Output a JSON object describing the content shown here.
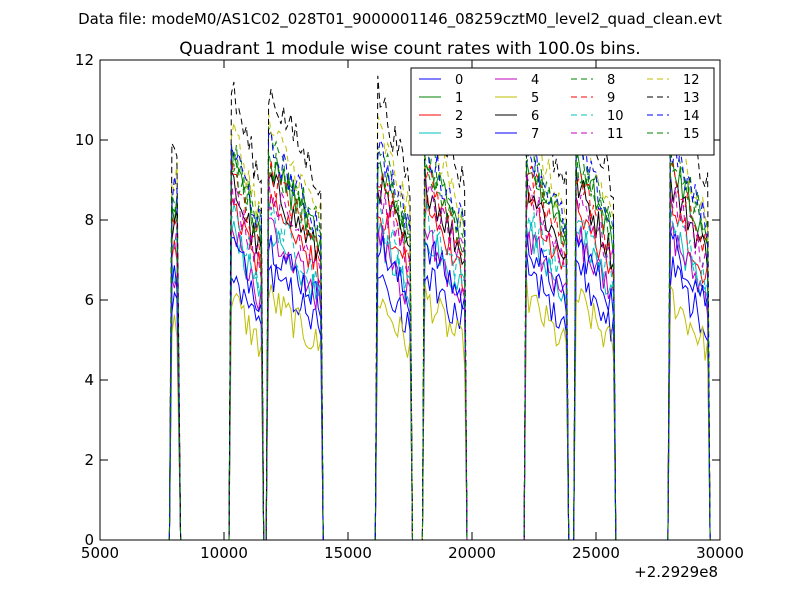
{
  "figure": {
    "suptitle": "Data file: modeM0/AS1C02_028T01_9000001146_08259cztM0_level2_quad_clean.evt"
  },
  "chart_data": {
    "type": "line",
    "title": "Quadrant 1 module wise count rates with 100.0s bins.",
    "xlabel": "",
    "ylabel": "",
    "xlim": [
      5000,
      30000
    ],
    "ylim": [
      0,
      12
    ],
    "x_offset_label": "+2.2929e8",
    "xticks": [
      5000,
      10000,
      15000,
      20000,
      25000,
      30000
    ],
    "yticks": [
      0,
      2,
      4,
      6,
      8,
      10,
      12
    ],
    "grid": false,
    "legend_placement": "top-right",
    "legend_columns": 4,
    "segments": [
      {
        "start": 7900,
        "end": 8150
      },
      {
        "start": 10300,
        "end": 11500
      },
      {
        "start": 11800,
        "end": 13900
      },
      {
        "start": 16200,
        "end": 17500
      },
      {
        "start": 18100,
        "end": 19700
      },
      {
        "start": 22200,
        "end": 23800
      },
      {
        "start": 24200,
        "end": 25700
      },
      {
        "start": 28000,
        "end": 29500
      }
    ],
    "series": [
      {
        "name": "0",
        "color": "#0000ff",
        "dash": "solid",
        "level": 5.9
      },
      {
        "name": "1",
        "color": "#008000",
        "dash": "solid",
        "level": 8.2
      },
      {
        "name": "2",
        "color": "#ff0000",
        "dash": "solid",
        "level": 7.1
      },
      {
        "name": "3",
        "color": "#00bfbf",
        "dash": "solid",
        "level": 6.4
      },
      {
        "name": "4",
        "color": "#bf00bf",
        "dash": "solid",
        "level": 6.7
      },
      {
        "name": "5",
        "color": "#bfbf00",
        "dash": "solid",
        "level": 5.2
      },
      {
        "name": "6",
        "color": "#000000",
        "dash": "solid",
        "level": 7.6
      },
      {
        "name": "7",
        "color": "#0000ff",
        "dash": "solid",
        "level": 6.2
      },
      {
        "name": "8",
        "color": "#008000",
        "dash": "dashed",
        "level": 8.6
      },
      {
        "name": "9",
        "color": "#ff0000",
        "dash": "dashed",
        "level": 7.9
      },
      {
        "name": "10",
        "color": "#00bfbf",
        "dash": "dashed",
        "level": 6.9
      },
      {
        "name": "11",
        "color": "#bf00bf",
        "dash": "dashed",
        "level": 7.3
      },
      {
        "name": "12",
        "color": "#bfbf00",
        "dash": "dashed",
        "level": 9.0
      },
      {
        "name": "13",
        "color": "#000000",
        "dash": "dashed",
        "level": 9.7
      },
      {
        "name": "14",
        "color": "#0000ff",
        "dash": "dashed",
        "level": 8.4
      },
      {
        "name": "15",
        "color": "#008000",
        "dash": "dashed",
        "level": 8.0
      }
    ]
  }
}
